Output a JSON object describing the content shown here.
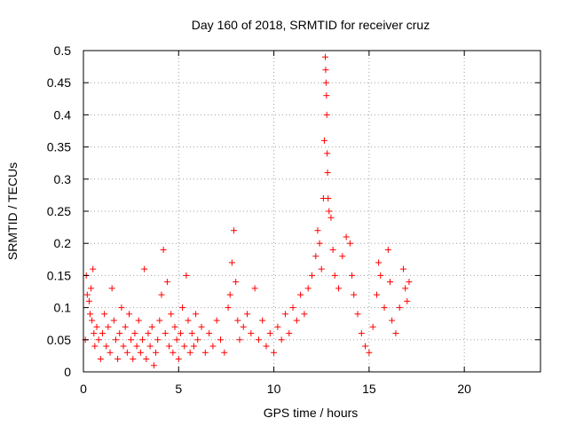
{
  "chart_data": {
    "type": "scatter",
    "title": "Day 160 of 2018, SRMTID for receiver cruz",
    "xlabel": "GPS time / hours",
    "ylabel": "SRMTID / TECUs",
    "xlim": [
      0,
      24
    ],
    "ylim": [
      0,
      0.5
    ],
    "x_ticks": [
      0,
      5,
      10,
      15,
      20
    ],
    "x_tick_labels": [
      "0",
      "5",
      "10",
      "15",
      "20"
    ],
    "y_ticks": [
      0,
      0.05,
      0.1,
      0.15,
      0.2,
      0.25,
      0.3,
      0.35,
      0.4,
      0.45,
      0.5
    ],
    "y_tick_labels": [
      "0",
      "0.05",
      "0.1",
      "0.15",
      "0.2",
      "0.25",
      "0.3",
      "0.35",
      "0.4",
      "0.45",
      "0.5"
    ],
    "grid": true,
    "marker": "plus",
    "color": "#ff0000",
    "x_range_of_data": [
      0,
      17.1
    ],
    "series": [
      {
        "points": [
          [
            0.1,
            0.05
          ],
          [
            0.15,
            0.15
          ],
          [
            0.2,
            0.12
          ],
          [
            0.3,
            0.11
          ],
          [
            0.35,
            0.09
          ],
          [
            0.4,
            0.13
          ],
          [
            0.45,
            0.08
          ],
          [
            0.5,
            0.16
          ],
          [
            0.55,
            0.06
          ],
          [
            0.6,
            0.04
          ],
          [
            0.7,
            0.07
          ],
          [
            0.8,
            0.05
          ],
          [
            0.9,
            0.02
          ],
          [
            1.0,
            0.06
          ],
          [
            1.1,
            0.09
          ],
          [
            1.2,
            0.04
          ],
          [
            1.3,
            0.07
          ],
          [
            1.4,
            0.03
          ],
          [
            1.5,
            0.13
          ],
          [
            1.6,
            0.08
          ],
          [
            1.7,
            0.05
          ],
          [
            1.8,
            0.02
          ],
          [
            1.9,
            0.06
          ],
          [
            2.0,
            0.1
          ],
          [
            2.1,
            0.04
          ],
          [
            2.2,
            0.07
          ],
          [
            2.3,
            0.03
          ],
          [
            2.4,
            0.09
          ],
          [
            2.5,
            0.05
          ],
          [
            2.6,
            0.02
          ],
          [
            2.7,
            0.06
          ],
          [
            2.8,
            0.04
          ],
          [
            2.9,
            0.08
          ],
          [
            3.0,
            0.03
          ],
          [
            3.1,
            0.05
          ],
          [
            3.2,
            0.16
          ],
          [
            3.3,
            0.02
          ],
          [
            3.4,
            0.06
          ],
          [
            3.5,
            0.04
          ],
          [
            3.6,
            0.07
          ],
          [
            3.7,
            0.01
          ],
          [
            3.8,
            0.03
          ],
          [
            3.9,
            0.05
          ],
          [
            4.0,
            0.08
          ],
          [
            4.1,
            0.12
          ],
          [
            4.2,
            0.19
          ],
          [
            4.3,
            0.06
          ],
          [
            4.4,
            0.14
          ],
          [
            4.5,
            0.04
          ],
          [
            4.6,
            0.09
          ],
          [
            4.7,
            0.03
          ],
          [
            4.8,
            0.07
          ],
          [
            4.9,
            0.05
          ],
          [
            5.0,
            0.02
          ],
          [
            5.1,
            0.06
          ],
          [
            5.2,
            0.1
          ],
          [
            5.3,
            0.04
          ],
          [
            5.4,
            0.15
          ],
          [
            5.5,
            0.08
          ],
          [
            5.6,
            0.03
          ],
          [
            5.7,
            0.06
          ],
          [
            5.8,
            0.04
          ],
          [
            5.9,
            0.09
          ],
          [
            6.0,
            0.05
          ],
          [
            6.2,
            0.07
          ],
          [
            6.4,
            0.03
          ],
          [
            6.6,
            0.06
          ],
          [
            6.8,
            0.04
          ],
          [
            7.0,
            0.08
          ],
          [
            7.2,
            0.05
          ],
          [
            7.4,
            0.03
          ],
          [
            7.6,
            0.1
          ],
          [
            7.7,
            0.12
          ],
          [
            7.8,
            0.17
          ],
          [
            7.9,
            0.22
          ],
          [
            8.0,
            0.14
          ],
          [
            8.1,
            0.08
          ],
          [
            8.2,
            0.05
          ],
          [
            8.4,
            0.07
          ],
          [
            8.6,
            0.09
          ],
          [
            8.8,
            0.06
          ],
          [
            9.0,
            0.13
          ],
          [
            9.2,
            0.05
          ],
          [
            9.4,
            0.08
          ],
          [
            9.6,
            0.04
          ],
          [
            9.8,
            0.06
          ],
          [
            10.0,
            0.03
          ],
          [
            10.2,
            0.07
          ],
          [
            10.4,
            0.05
          ],
          [
            10.6,
            0.09
          ],
          [
            10.8,
            0.06
          ],
          [
            11.0,
            0.1
          ],
          [
            11.2,
            0.08
          ],
          [
            11.4,
            0.12
          ],
          [
            11.6,
            0.09
          ],
          [
            11.8,
            0.13
          ],
          [
            12.0,
            0.15
          ],
          [
            12.2,
            0.18
          ],
          [
            12.3,
            0.22
          ],
          [
            12.4,
            0.2
          ],
          [
            12.5,
            0.16
          ],
          [
            12.6,
            0.27
          ],
          [
            12.65,
            0.36
          ],
          [
            12.7,
            0.49
          ],
          [
            12.72,
            0.47
          ],
          [
            12.74,
            0.45
          ],
          [
            12.76,
            0.43
          ],
          [
            12.78,
            0.4
          ],
          [
            12.8,
            0.34
          ],
          [
            12.82,
            0.31
          ],
          [
            12.85,
            0.27
          ],
          [
            12.9,
            0.25
          ],
          [
            13.0,
            0.24
          ],
          [
            13.1,
            0.19
          ],
          [
            13.2,
            0.15
          ],
          [
            13.4,
            0.13
          ],
          [
            13.6,
            0.18
          ],
          [
            13.8,
            0.21
          ],
          [
            14.0,
            0.2
          ],
          [
            14.1,
            0.15
          ],
          [
            14.2,
            0.12
          ],
          [
            14.4,
            0.09
          ],
          [
            14.6,
            0.06
          ],
          [
            14.8,
            0.04
          ],
          [
            15.0,
            0.03
          ],
          [
            15.2,
            0.07
          ],
          [
            15.4,
            0.12
          ],
          [
            15.5,
            0.17
          ],
          [
            15.6,
            0.15
          ],
          [
            15.8,
            0.1
          ],
          [
            16.0,
            0.19
          ],
          [
            16.1,
            0.14
          ],
          [
            16.2,
            0.08
          ],
          [
            16.4,
            0.06
          ],
          [
            16.6,
            0.1
          ],
          [
            16.8,
            0.16
          ],
          [
            16.9,
            0.13
          ],
          [
            17.0,
            0.11
          ],
          [
            17.1,
            0.14
          ]
        ]
      }
    ]
  }
}
